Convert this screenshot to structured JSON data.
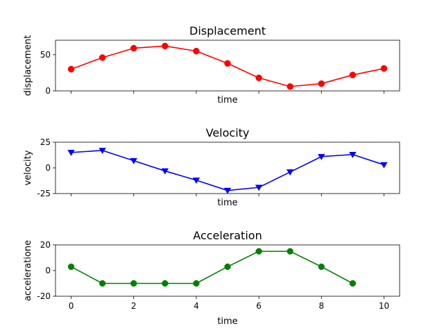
{
  "chart_data": [
    {
      "type": "line",
      "title": "Displacement",
      "xlabel": "time",
      "ylabel": "displacement",
      "xlim": [
        -0.5,
        10.5
      ],
      "ylim": [
        0,
        70
      ],
      "yticks": [
        0,
        50
      ],
      "xticks": [
        0,
        2,
        4,
        6,
        8,
        10
      ],
      "show_xticklabels": false,
      "grid": false,
      "series": [
        {
          "color": "#ff0000",
          "marker": "circle",
          "x": [
            0,
            1,
            2,
            3,
            4,
            5,
            6,
            7,
            8,
            9,
            10
          ],
          "y": [
            30,
            46,
            59,
            62,
            55,
            38,
            18,
            6,
            10,
            22,
            31
          ]
        }
      ]
    },
    {
      "type": "line",
      "title": "Velocity",
      "xlabel": "time",
      "ylabel": "velocity",
      "xlim": [
        -0.5,
        10.5
      ],
      "ylim": [
        -25,
        25
      ],
      "yticks": [
        -25,
        0,
        25
      ],
      "xticks": [
        0,
        2,
        4,
        6,
        8,
        10
      ],
      "show_xticklabels": false,
      "grid": false,
      "series": [
        {
          "color": "#0000ff",
          "marker": "triangle-down",
          "x": [
            0,
            1,
            2,
            3,
            4,
            5,
            6,
            7,
            8,
            9,
            10
          ],
          "y": [
            15,
            17,
            7,
            -3,
            -12,
            -22,
            -19,
            -4,
            11,
            13,
            3
          ]
        }
      ]
    },
    {
      "type": "line",
      "title": "Acceleration",
      "xlabel": "time",
      "ylabel": "acceleratione",
      "xlim": [
        -0.5,
        10.5
      ],
      "ylim": [
        -20,
        20
      ],
      "yticks": [
        -20,
        0,
        20
      ],
      "xticks": [
        0,
        2,
        4,
        6,
        8,
        10
      ],
      "show_xticklabels": true,
      "grid": false,
      "series": [
        {
          "color": "#008000",
          "marker": "octagon",
          "x": [
            0,
            1,
            2,
            3,
            4,
            5,
            6,
            7,
            8,
            9
          ],
          "y": [
            3,
            -10,
            -10,
            -10,
            -10,
            3,
            15,
            15,
            3,
            -10
          ]
        }
      ]
    }
  ]
}
